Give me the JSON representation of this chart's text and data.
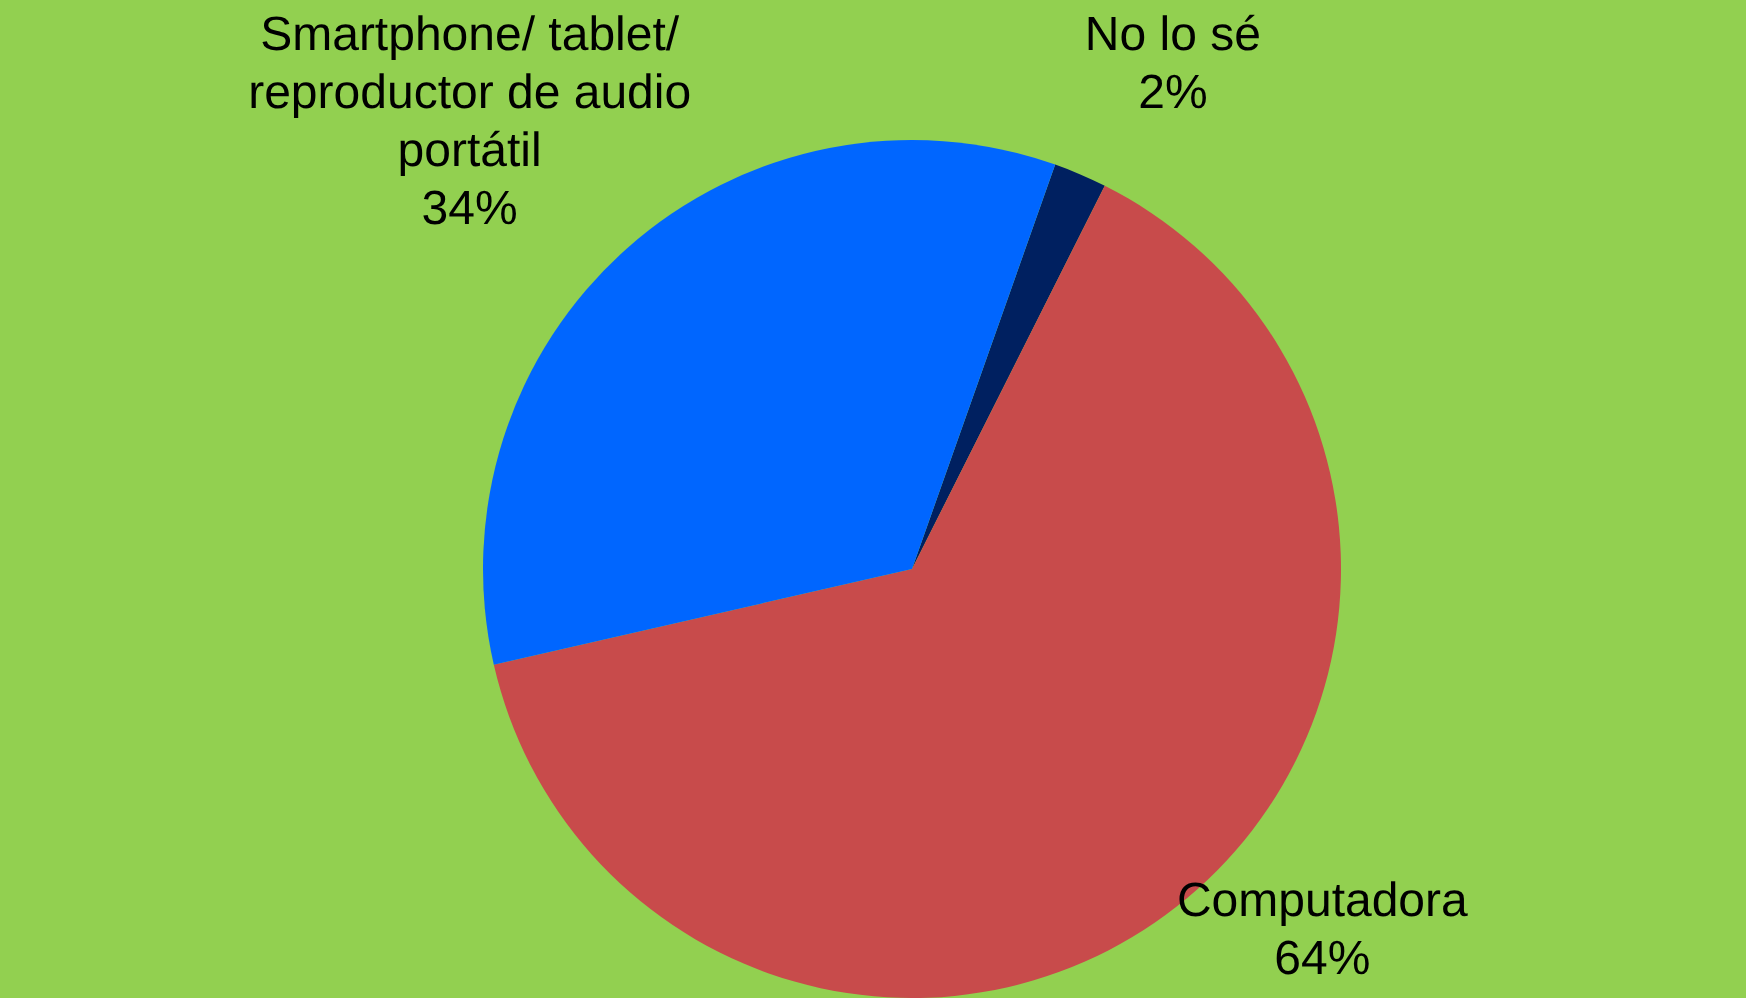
{
  "chart_data": {
    "type": "pie",
    "categories": [
      "No lo sé",
      "Computadora",
      "Smartphone/ tablet/ reproductor de audio portátil"
    ],
    "values": [
      2,
      64,
      34
    ],
    "colors": [
      "#002060",
      "#c84b4b",
      "#0066ff"
    ],
    "value_labels": [
      "2%",
      "64%",
      "34%"
    ],
    "legend": false
  }
}
